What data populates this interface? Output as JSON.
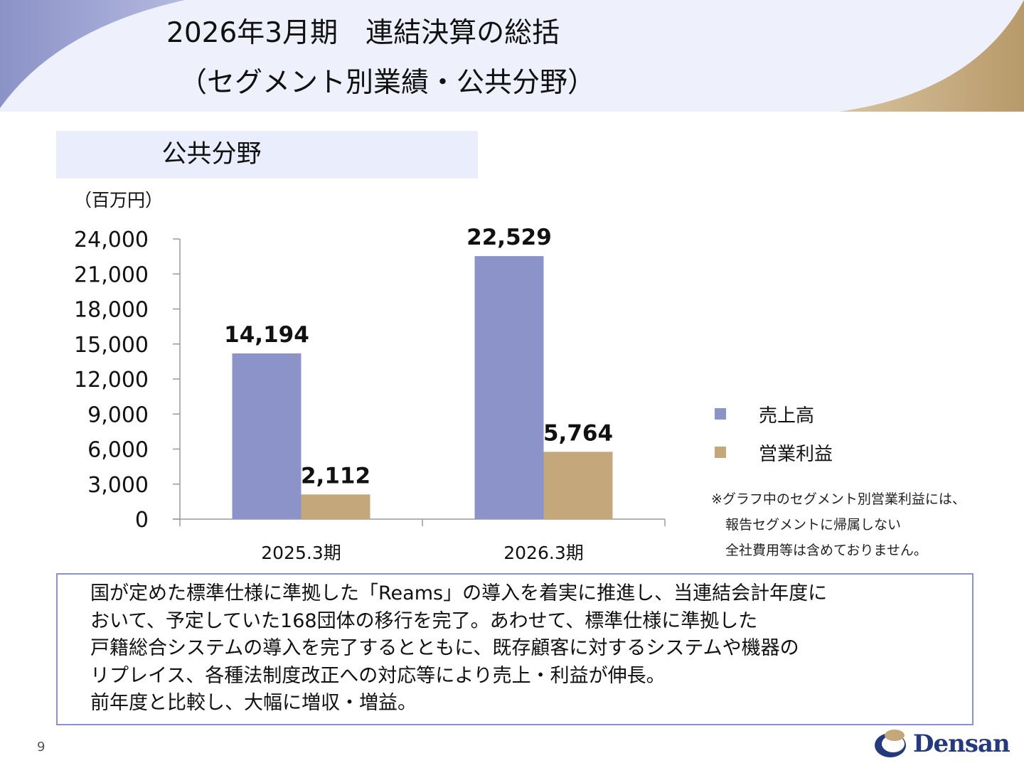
{
  "header": {
    "title_line1": "2026年3月期　連結決算の総括",
    "title_line2": "（セグメント別業績・公共分野）"
  },
  "section": {
    "label": "公共分野"
  },
  "chart_data": {
    "type": "bar",
    "unit_label": "（百万円）",
    "categories": [
      "2025.3期",
      "2026.3期"
    ],
    "series": [
      {
        "name": "売上高",
        "values": [
          14194,
          22529
        ],
        "color": "#8b93c8"
      },
      {
        "name": "営業利益",
        "values": [
          2112,
          5764
        ],
        "color": "#c4a87c"
      }
    ],
    "data_labels": [
      [
        "14,194",
        "22,529"
      ],
      [
        "2,112",
        "5,764"
      ]
    ],
    "ylim": [
      0,
      24000
    ],
    "yticks": [
      0,
      3000,
      6000,
      9000,
      12000,
      15000,
      18000,
      21000,
      24000
    ],
    "ytick_labels": [
      "0",
      "3,000",
      "6,000",
      "9,000",
      "12,000",
      "15,000",
      "18,000",
      "21,000",
      "24,000"
    ],
    "grid": false,
    "legend_position": "right"
  },
  "note": {
    "lines": [
      "※グラフ中のセグメント別営業利益には、",
      "報告セグメントに帰属しない",
      "全社費用等は含めておりません。"
    ]
  },
  "comment": {
    "lines": [
      "国が定めた標準仕様に準拠した「Reams」の導入を着実に推進し、当連結会計年度に",
      "おいて、予定していた168団体の移行を完了。あわせて、標準仕様に準拠した",
      "戸籍総合システムの導入を完了するとともに、既存顧客に対するシステムや機器の",
      "リプレイス、各種法制度改正への対応等により売上・利益が伸長。",
      "前年度と比較し、大幅に増収・増益。"
    ]
  },
  "footer": {
    "page_number": "9",
    "logo_text": "Densan"
  },
  "colors": {
    "header_left_arc": "#8b92c6",
    "header_right_arc": "#c4a77b",
    "header_band": "#eef0fc",
    "box_border": "#8b92c6"
  }
}
